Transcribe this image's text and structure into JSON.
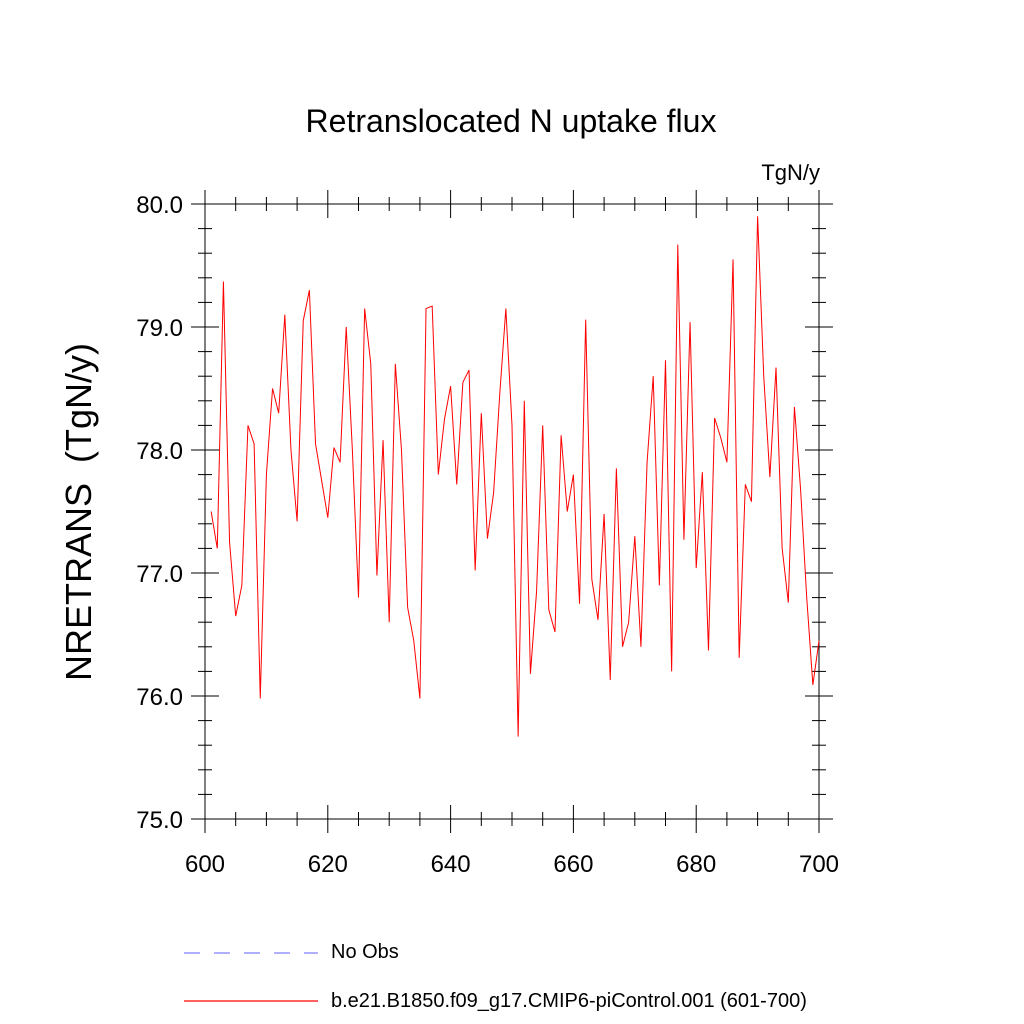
{
  "chart_data": {
    "type": "line",
    "title": "Retranslocated N uptake flux",
    "units_label": "TgN/y",
    "ylabel": "NRETRANS  (TgN/y)",
    "xlabel": "",
    "xlim": [
      600,
      700
    ],
    "ylim": [
      75.0,
      80.0
    ],
    "x_ticks": [
      600,
      620,
      640,
      660,
      680,
      700
    ],
    "x_tick_labels": [
      "600",
      "620",
      "640",
      "660",
      "680",
      "700"
    ],
    "y_ticks": [
      75.0,
      76.0,
      77.0,
      78.0,
      79.0,
      80.0
    ],
    "y_tick_labels": [
      "75.0",
      "76.0",
      "77.0",
      "78.0",
      "79.0",
      "80.0"
    ],
    "series": [
      {
        "name": "b.e21.B1850.f09_g17.CMIP6-piControl.001 (601-700)",
        "color": "#ff0000",
        "x_start": 601,
        "values": [
          77.5,
          77.2,
          79.37,
          77.25,
          76.65,
          76.9,
          78.2,
          78.05,
          75.98,
          77.8,
          78.5,
          78.3,
          79.1,
          78.0,
          77.42,
          79.05,
          79.3,
          78.05,
          77.75,
          77.45,
          78.02,
          77.9,
          79.0,
          78.0,
          76.8,
          79.15,
          78.7,
          76.98,
          78.08,
          76.6,
          78.7,
          78.0,
          76.72,
          76.45,
          75.98,
          79.15,
          79.17,
          77.8,
          78.25,
          78.52,
          77.72,
          78.55,
          78.65,
          77.02,
          78.3,
          77.28,
          77.65,
          78.45,
          79.15,
          78.2,
          75.67,
          78.4,
          76.18,
          76.85,
          78.2,
          76.7,
          76.52,
          78.12,
          77.5,
          77.8,
          76.75,
          79.06,
          76.95,
          76.62,
          77.48,
          76.13,
          77.85,
          76.4,
          76.6,
          77.3,
          76.4,
          77.9,
          78.6,
          76.9,
          78.73,
          76.2,
          79.67,
          77.27,
          79.04,
          77.04,
          77.82,
          76.37,
          78.26,
          78.1,
          77.9,
          79.55,
          76.31,
          77.72,
          77.58,
          79.9,
          78.6,
          77.78,
          78.67,
          77.2,
          76.76,
          78.35,
          77.68,
          76.8,
          76.09,
          76.45
        ]
      }
    ],
    "legend": [
      {
        "label": "No Obs",
        "style": "dashed",
        "color": "#8080ff"
      },
      {
        "label": "b.e21.B1850.f09_g17.CMIP6-piControl.001 (601-700)",
        "style": "solid",
        "color": "#ff0000"
      }
    ]
  }
}
